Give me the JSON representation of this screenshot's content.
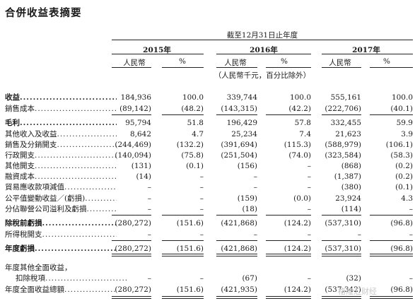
{
  "title": "合併收益表摘要",
  "period_header": "截至12月31日止年度",
  "years": [
    "2015年",
    "2016年",
    "2017年"
  ],
  "col_rmb": "人民幣",
  "col_pct": "%",
  "unit_note": "（人民幣千元，百分比除外）",
  "rows": [
    {
      "label": "收益",
      "bold": true,
      "v": [
        "184,936",
        "100.0",
        "339,744",
        "100.0",
        "555,161",
        "100.0"
      ]
    },
    {
      "label": "銷售成本",
      "bold": false,
      "v": [
        "(89,142)",
        "(48.2)",
        "(143,315)",
        "(42.2)",
        "(222,706)",
        "(40.1)"
      ]
    },
    {
      "label": "毛利",
      "bold": true,
      "v": [
        "95,794",
        "51.8",
        "196,429",
        "57.8",
        "332,455",
        "59.9"
      ]
    },
    {
      "label": "其他收入及收益",
      "bold": false,
      "v": [
        "8,642",
        "4.7",
        "25,234",
        "7.4",
        "21,623",
        "3.9"
      ]
    },
    {
      "label": "銷售及分銷開支",
      "bold": false,
      "v": [
        "(244,469)",
        "(132.2)",
        "(391,694)",
        "(115.3)",
        "(588,979)",
        "(106.1)"
      ]
    },
    {
      "label": "行政開支",
      "bold": false,
      "v": [
        "(140,094)",
        "(75.8)",
        "(251,504)",
        "(74.0)",
        "(323,584)",
        "(58.3)"
      ]
    },
    {
      "label": "其他開支",
      "bold": false,
      "v": [
        "(131)",
        "(0.1)",
        "(156)",
        "–",
        "(868)",
        "(0.2)"
      ]
    },
    {
      "label": "融資成本",
      "bold": false,
      "v": [
        "(14)",
        "–",
        "–",
        "–",
        "(1,387)",
        "(0.2)"
      ]
    },
    {
      "label": "貿易應收款項減值",
      "bold": false,
      "v": [
        "–",
        "–",
        "–",
        "–",
        "(380)",
        "(0.1)"
      ]
    },
    {
      "label": "公平值變動收益／(虧損)",
      "bold": false,
      "v": [
        "–",
        "–",
        "(159)",
        "(0.0)",
        "23,924",
        "4.3"
      ]
    },
    {
      "label": "分佔聯營公司溢利及虧損",
      "bold": false,
      "v": [
        "–",
        "–",
        "(18)",
        "–",
        "(114)",
        "–"
      ]
    },
    {
      "label": "除稅前虧損",
      "bold": true,
      "v": [
        "(280,272)",
        "(151.6)",
        "(421,868)",
        "(124.2)",
        "(537,310)",
        "(96.8)"
      ]
    },
    {
      "label": "所得稅開支",
      "bold": false,
      "v": [
        "–",
        "–",
        "–",
        "–",
        "–",
        "–"
      ]
    },
    {
      "label": "年度虧損",
      "bold": true,
      "v": [
        "(280,272)",
        "(151.6)",
        "(421,868)",
        "(124.2)",
        "(537,310)",
        "(96.8)"
      ]
    },
    {
      "label": "年度其他全面收益，",
      "bold": false,
      "nodots": true,
      "v": [
        "",
        "",
        "",
        "",
        "",
        ""
      ]
    },
    {
      "label": "扣除稅項",
      "bold": false,
      "indent": true,
      "v": [
        "–",
        "–",
        "(67)",
        "–",
        "(32)",
        "–"
      ]
    },
    {
      "label": "年度全面收益總額",
      "bold": false,
      "v": [
        "(280,272)",
        "(151.6)",
        "(421,935)",
        "(124.2)",
        "(537,342)",
        "(96.8)"
      ]
    }
  ],
  "watermark": "格隆汇财经"
}
